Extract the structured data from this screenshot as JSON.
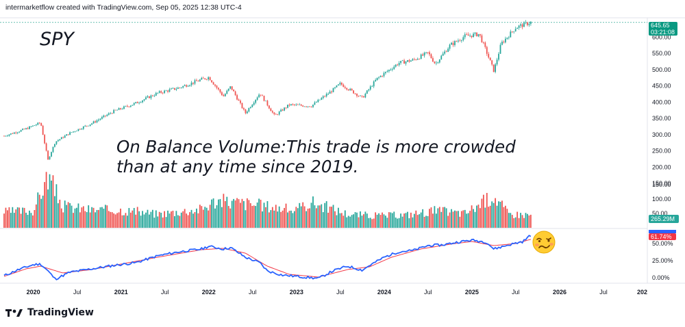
{
  "header": {
    "text": "intermarketflow created with TradingView.com, Sep 05, 2025 12:38 UTC-4"
  },
  "symbol": "SPY",
  "annotation": {
    "line1": "On Balance Volume:This trade is more crowded",
    "line2": "than at any time since 2019."
  },
  "branding": {
    "logo_text": "TradingView"
  },
  "colors": {
    "up": "#26a69a",
    "down": "#ef5350",
    "obv": "#2962ff",
    "obv_ma": "#f23645",
    "last_price": "#089981"
  },
  "chart_data": {
    "type": "candlestick",
    "title": "SPY",
    "timeframe": "weekly",
    "x_range": [
      "2019-09",
      "2027-01"
    ],
    "x_tick_labels": [
      "2020",
      "Jul",
      "2021",
      "Jul",
      "2022",
      "Jul",
      "2023",
      "Jul",
      "2024",
      "Jul",
      "2025",
      "Jul",
      "2026",
      "Jul",
      "202"
    ],
    "price_axis": {
      "ylim": [
        150,
        660
      ],
      "ticks": [
        "600.00",
        "550.00",
        "500.00",
        "450.00",
        "400.00",
        "350.00",
        "300.00",
        "250.00",
        "200.00",
        "150.00"
      ]
    },
    "last_price": {
      "value": "645.65",
      "countdown": "03:21:08"
    },
    "price_path": [
      [
        "2019-09",
        296
      ],
      [
        "2019-12",
        318
      ],
      [
        "2020-02",
        337
      ],
      [
        "2020-03",
        222
      ],
      [
        "2020-04",
        278
      ],
      [
        "2020-06",
        305
      ],
      [
        "2020-09",
        335
      ],
      [
        "2020-12",
        372
      ],
      [
        "2021-03",
        397
      ],
      [
        "2021-06",
        428
      ],
      [
        "2021-09",
        445
      ],
      [
        "2021-12",
        470
      ],
      [
        "2022-01",
        477
      ],
      [
        "2022-03",
        418
      ],
      [
        "2022-04",
        448
      ],
      [
        "2022-06",
        366
      ],
      [
        "2022-08",
        428
      ],
      [
        "2022-10",
        358
      ],
      [
        "2022-12",
        392
      ],
      [
        "2023-03",
        388
      ],
      [
        "2023-06",
        438
      ],
      [
        "2023-07",
        457
      ],
      [
        "2023-10",
        413
      ],
      [
        "2023-12",
        472
      ],
      [
        "2024-03",
        521
      ],
      [
        "2024-05",
        530
      ],
      [
        "2024-07",
        552
      ],
      [
        "2024-08",
        518
      ],
      [
        "2024-10",
        575
      ],
      [
        "2024-12",
        603
      ],
      [
        "2025-02",
        610
      ],
      [
        "2025-03",
        555
      ],
      [
        "2025-04",
        496
      ],
      [
        "2025-05",
        580
      ],
      [
        "2025-06",
        605
      ],
      [
        "2025-07",
        630
      ],
      [
        "2025-09",
        646
      ]
    ],
    "volume": {
      "label_value": "265.29M",
      "ticks": [
        "150.00",
        "100.00",
        "50.00"
      ],
      "ylim": [
        0,
        185
      ],
      "path": [
        [
          "2019-09",
          55
        ],
        [
          "2020-01",
          60
        ],
        [
          "2020-03",
          180
        ],
        [
          "2020-05",
          75
        ],
        [
          "2020-09",
          62
        ],
        [
          "2021-01",
          62
        ],
        [
          "2021-06",
          48
        ],
        [
          "2021-12",
          65
        ],
        [
          "2022-02",
          95
        ],
        [
          "2022-06",
          85
        ],
        [
          "2022-10",
          72
        ],
        [
          "2023-01",
          60
        ],
        [
          "2023-03",
          90
        ],
        [
          "2023-08",
          48
        ],
        [
          "2023-12",
          42
        ],
        [
          "2024-04",
          45
        ],
        [
          "2024-08",
          60
        ],
        [
          "2024-12",
          50
        ],
        [
          "2025-04",
          112
        ],
        [
          "2025-06",
          48
        ],
        [
          "2025-09",
          45
        ]
      ]
    },
    "obv": {
      "label_value": "61.74%",
      "ylim": [
        -0.05,
        0.66
      ],
      "ticks": [
        "50.00%",
        "25.00%",
        "0.00%"
      ],
      "series": [
        {
          "name": "OBV",
          "points": [
            [
              "2019-09",
              0.03
            ],
            [
              "2019-11",
              0.12
            ],
            [
              "2020-01",
              0.19
            ],
            [
              "2020-02",
              0.2
            ],
            [
              "2020-03",
              0.1
            ],
            [
              "2020-04",
              -0.02
            ],
            [
              "2020-06",
              0.08
            ],
            [
              "2020-09",
              0.13
            ],
            [
              "2020-12",
              0.18
            ],
            [
              "2021-03",
              0.22
            ],
            [
              "2021-06",
              0.32
            ],
            [
              "2021-09",
              0.38
            ],
            [
              "2021-12",
              0.42
            ],
            [
              "2022-01",
              0.46
            ],
            [
              "2022-03",
              0.42
            ],
            [
              "2022-04",
              0.44
            ],
            [
              "2022-06",
              0.3
            ],
            [
              "2022-08",
              0.22
            ],
            [
              "2022-09",
              0.1
            ],
            [
              "2022-11",
              0.04
            ],
            [
              "2023-01",
              0.02
            ],
            [
              "2023-03",
              0.0
            ],
            [
              "2023-04",
              -0.01
            ],
            [
              "2023-06",
              0.1
            ],
            [
              "2023-08",
              0.17
            ],
            [
              "2023-10",
              0.11
            ],
            [
              "2023-11",
              0.18
            ],
            [
              "2024-01",
              0.3
            ],
            [
              "2024-03",
              0.38
            ],
            [
              "2024-05",
              0.4
            ],
            [
              "2024-07",
              0.47
            ],
            [
              "2024-09",
              0.48
            ],
            [
              "2024-11",
              0.52
            ],
            [
              "2025-01",
              0.55
            ],
            [
              "2025-03",
              0.52
            ],
            [
              "2025-04",
              0.42
            ],
            [
              "2025-06",
              0.48
            ],
            [
              "2025-08",
              0.53
            ],
            [
              "2025-09",
              0.62
            ]
          ]
        },
        {
          "name": "MA",
          "points": [
            [
              "2019-09",
              0.02
            ],
            [
              "2019-12",
              0.13
            ],
            [
              "2020-02",
              0.17
            ],
            [
              "2020-05",
              0.07
            ],
            [
              "2020-09",
              0.12
            ],
            [
              "2020-12",
              0.18
            ],
            [
              "2021-06",
              0.3
            ],
            [
              "2021-12",
              0.41
            ],
            [
              "2022-03",
              0.43
            ],
            [
              "2022-06",
              0.36
            ],
            [
              "2022-09",
              0.17
            ],
            [
              "2022-12",
              0.05
            ],
            [
              "2023-04",
              0.01
            ],
            [
              "2023-08",
              0.12
            ],
            [
              "2023-11",
              0.16
            ],
            [
              "2024-02",
              0.3
            ],
            [
              "2024-06",
              0.42
            ],
            [
              "2024-10",
              0.49
            ],
            [
              "2025-01",
              0.53
            ],
            [
              "2025-04",
              0.47
            ],
            [
              "2025-07",
              0.5
            ],
            [
              "2025-09",
              0.56
            ]
          ]
        }
      ]
    }
  }
}
